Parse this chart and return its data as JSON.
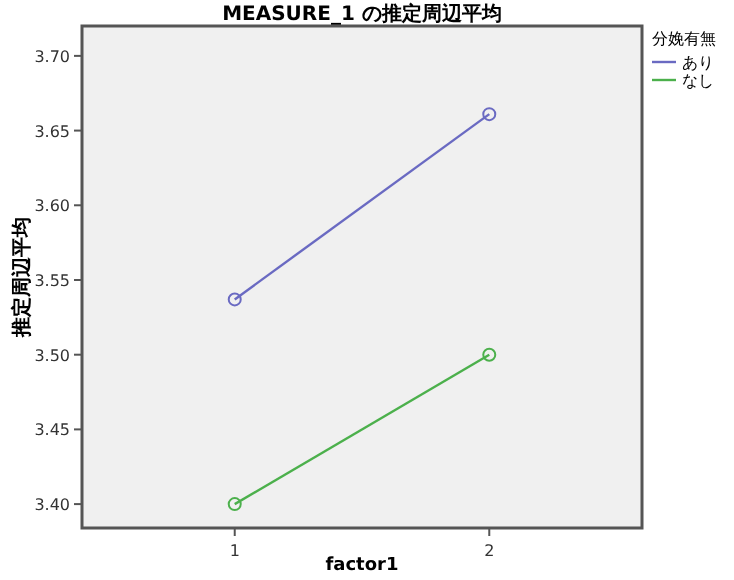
{
  "chart_data": {
    "type": "line",
    "title": "MEASURE_1 の推定周辺平均",
    "xlabel": "factor1",
    "ylabel": "推定周辺平均",
    "legend_title": "分娩有無",
    "categories": [
      "1",
      "2"
    ],
    "series": [
      {
        "name": "あり",
        "color": "#6a6ac2",
        "values": [
          3.537,
          3.661
        ]
      },
      {
        "name": "なし",
        "color": "#4cb04c",
        "values": [
          3.4,
          3.5
        ]
      }
    ],
    "ylim": [
      3.384,
      3.72
    ],
    "yticks": [
      {
        "value": 3.4,
        "label": "3.40"
      },
      {
        "value": 3.45,
        "label": "3.45"
      },
      {
        "value": 3.5,
        "label": "3.50"
      },
      {
        "value": 3.55,
        "label": "3.55"
      },
      {
        "value": 3.6,
        "label": "3.60"
      },
      {
        "value": 3.65,
        "label": "3.65"
      },
      {
        "value": 3.7,
        "label": "3.70"
      }
    ],
    "grid": false,
    "legend": "right",
    "marker": "circle",
    "line_style": "solid"
  }
}
